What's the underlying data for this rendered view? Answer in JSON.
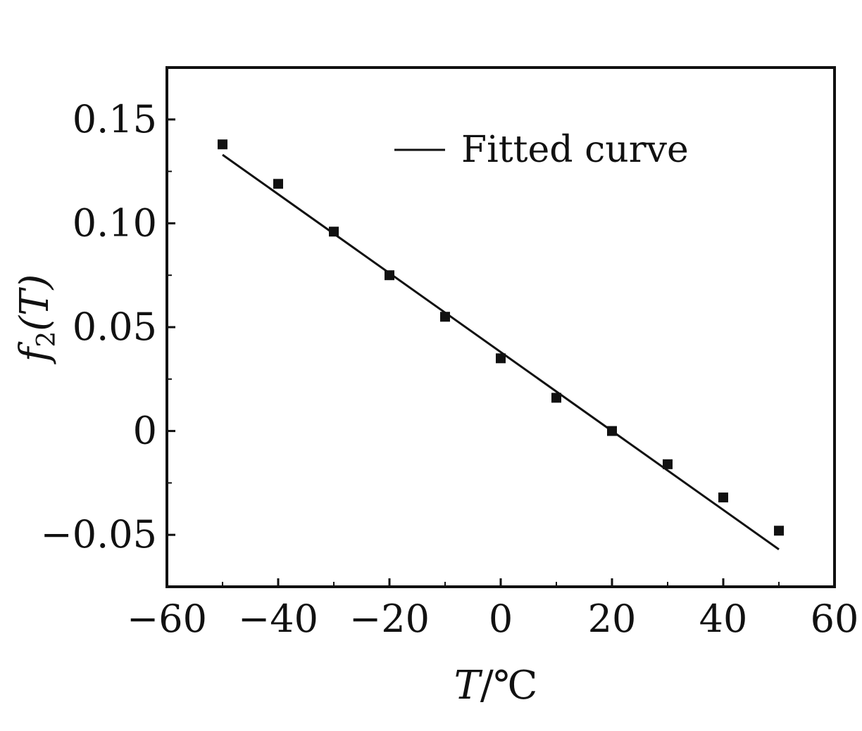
{
  "chart_data": {
    "type": "scatter",
    "xlabel_main": "T",
    "xlabel_unit": "/℃",
    "ylabel_main": "f",
    "ylabel_sub": "2",
    "ylabel_arg": "(T)",
    "xlim": [
      -60,
      60
    ],
    "ylim": [
      -0.075,
      0.175
    ],
    "x_ticks": [
      -60,
      -40,
      -20,
      0,
      20,
      40,
      60
    ],
    "x_tick_labels": [
      "−60",
      "−40",
      "−20",
      "0",
      "20",
      "40",
      "60"
    ],
    "y_ticks": [
      -0.05,
      0,
      0.05,
      0.1,
      0.15
    ],
    "y_tick_labels": [
      "−0.05",
      "0",
      "0.05",
      "0.10",
      "0.15"
    ],
    "grid": false,
    "legend": {
      "position": "top-right",
      "entries": [
        {
          "label": "Fitted curve",
          "marker": "line"
        }
      ]
    },
    "series": [
      {
        "kind": "points",
        "marker": "square",
        "x": [
          -50,
          -40,
          -30,
          -20,
          -10,
          0,
          10,
          20,
          30,
          40,
          50
        ],
        "y": [
          0.138,
          0.119,
          0.096,
          0.075,
          0.055,
          0.035,
          0.016,
          0.0,
          -0.016,
          -0.032,
          -0.048
        ]
      },
      {
        "kind": "line",
        "name": "Fitted curve",
        "x": [
          -50,
          50
        ],
        "y": [
          0.133,
          -0.057
        ]
      }
    ],
    "colors": {
      "axis": "#111111",
      "points": "#111111",
      "line": "#111111"
    }
  }
}
